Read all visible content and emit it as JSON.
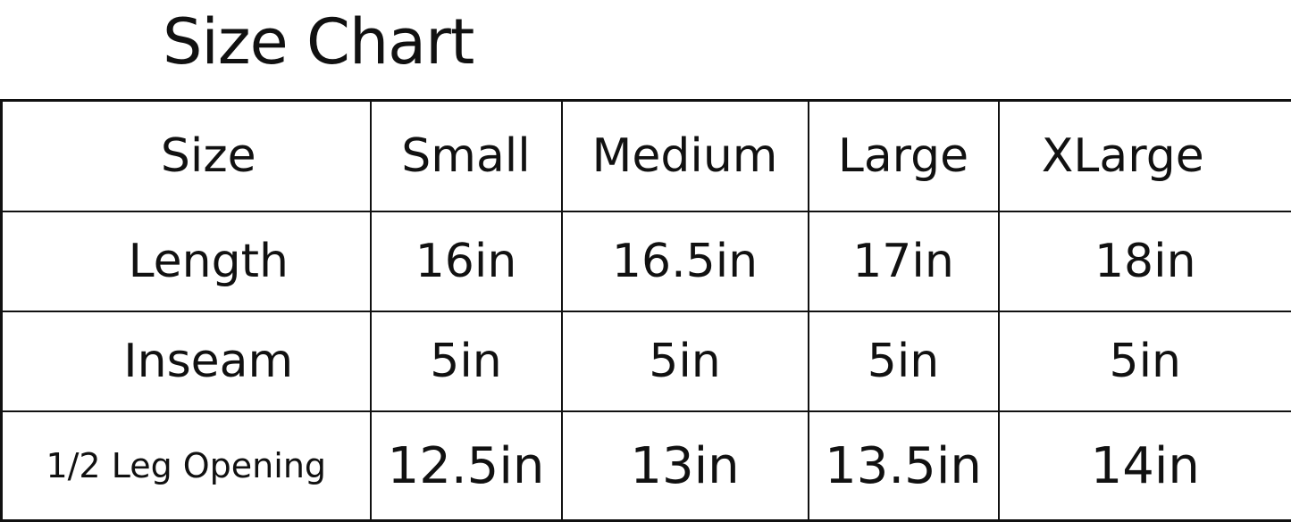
{
  "title": "Size Chart",
  "table": {
    "headers": [
      "Size",
      "Small",
      "Medium",
      "Large",
      "XLarge"
    ],
    "rows": [
      {
        "label": "Length",
        "values": [
          "16in",
          "16.5in",
          "17in",
          "18in"
        ]
      },
      {
        "label": "Inseam",
        "values": [
          "5in",
          "5in",
          "5in",
          "5in"
        ]
      },
      {
        "label": "1/2 Leg Opening",
        "values": [
          "12.5in",
          "13in",
          "13.5in",
          "14in"
        ]
      }
    ]
  }
}
